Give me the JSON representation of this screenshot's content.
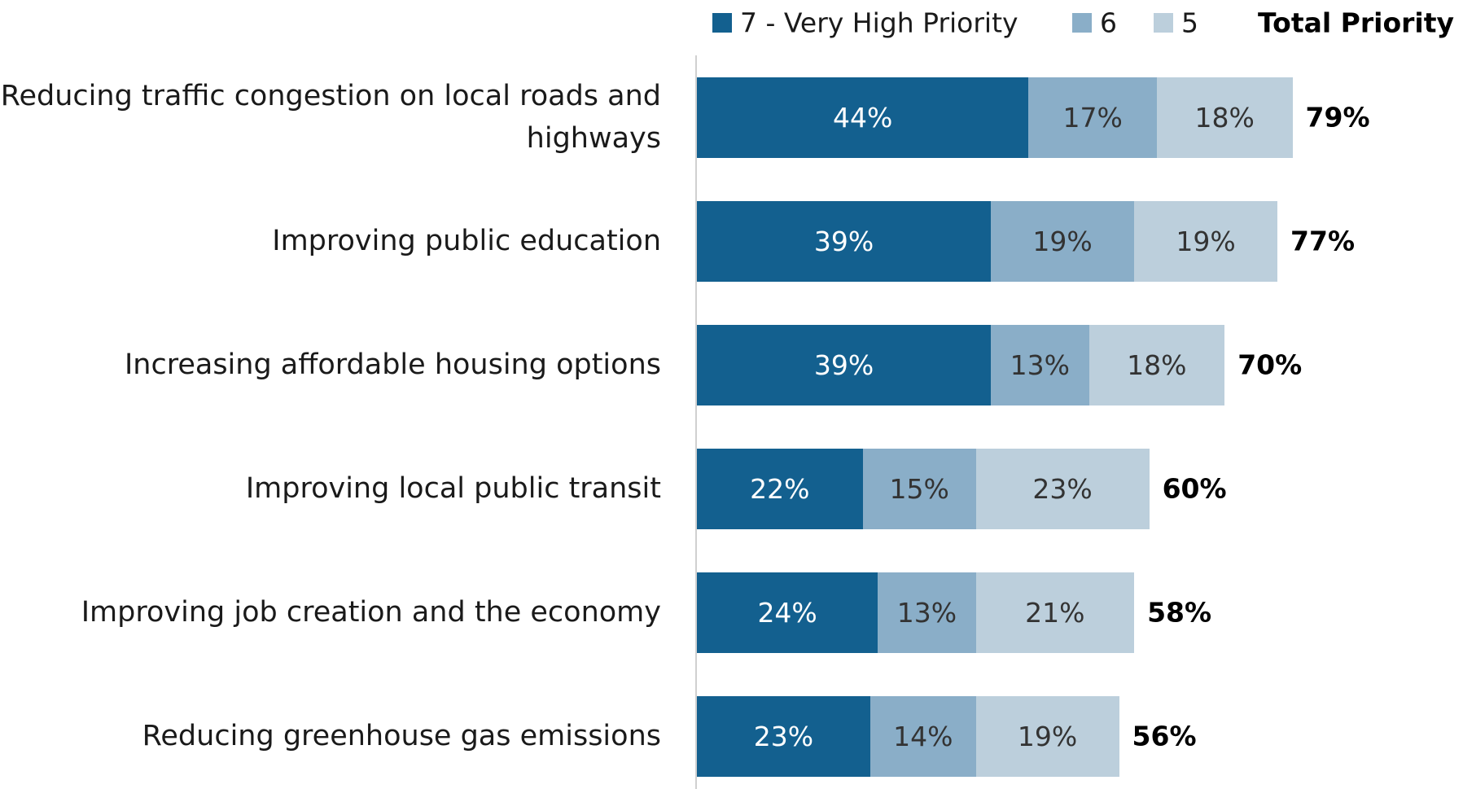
{
  "chart_data": {
    "type": "stacked_bar_horizontal",
    "categories": [
      "Reducing traffic congestion on local roads and highways",
      "Improving public education",
      "Increasing affordable housing options",
      "Improving local public transit",
      "Improving job creation and the economy",
      "Reducing greenhouse gas emissions"
    ],
    "series": [
      {
        "name": "7 - Very High Priority",
        "color": "#13608f",
        "values": [
          44,
          39,
          39,
          22,
          24,
          23
        ],
        "value_labels": [
          "44%",
          "39%",
          "39%",
          "22%",
          "24%",
          "23%"
        ]
      },
      {
        "name": "6",
        "color": "#8aaec8",
        "values": [
          17,
          19,
          13,
          15,
          13,
          14
        ],
        "value_labels": [
          "17%",
          "19%",
          "13%",
          "15%",
          "13%",
          "14%"
        ]
      },
      {
        "name": "5",
        "color": "#bccfdc",
        "values": [
          18,
          19,
          18,
          23,
          21,
          19
        ],
        "value_labels": [
          "18%",
          "19%",
          "18%",
          "23%",
          "21%",
          "19%"
        ]
      }
    ],
    "totals_title": "Total Priority",
    "totals": [
      79,
      77,
      70,
      60,
      58,
      56
    ],
    "total_labels": [
      "79%",
      "77%",
      "70%",
      "60%",
      "58%",
      "56%"
    ],
    "xlim": [
      0,
      100
    ]
  }
}
